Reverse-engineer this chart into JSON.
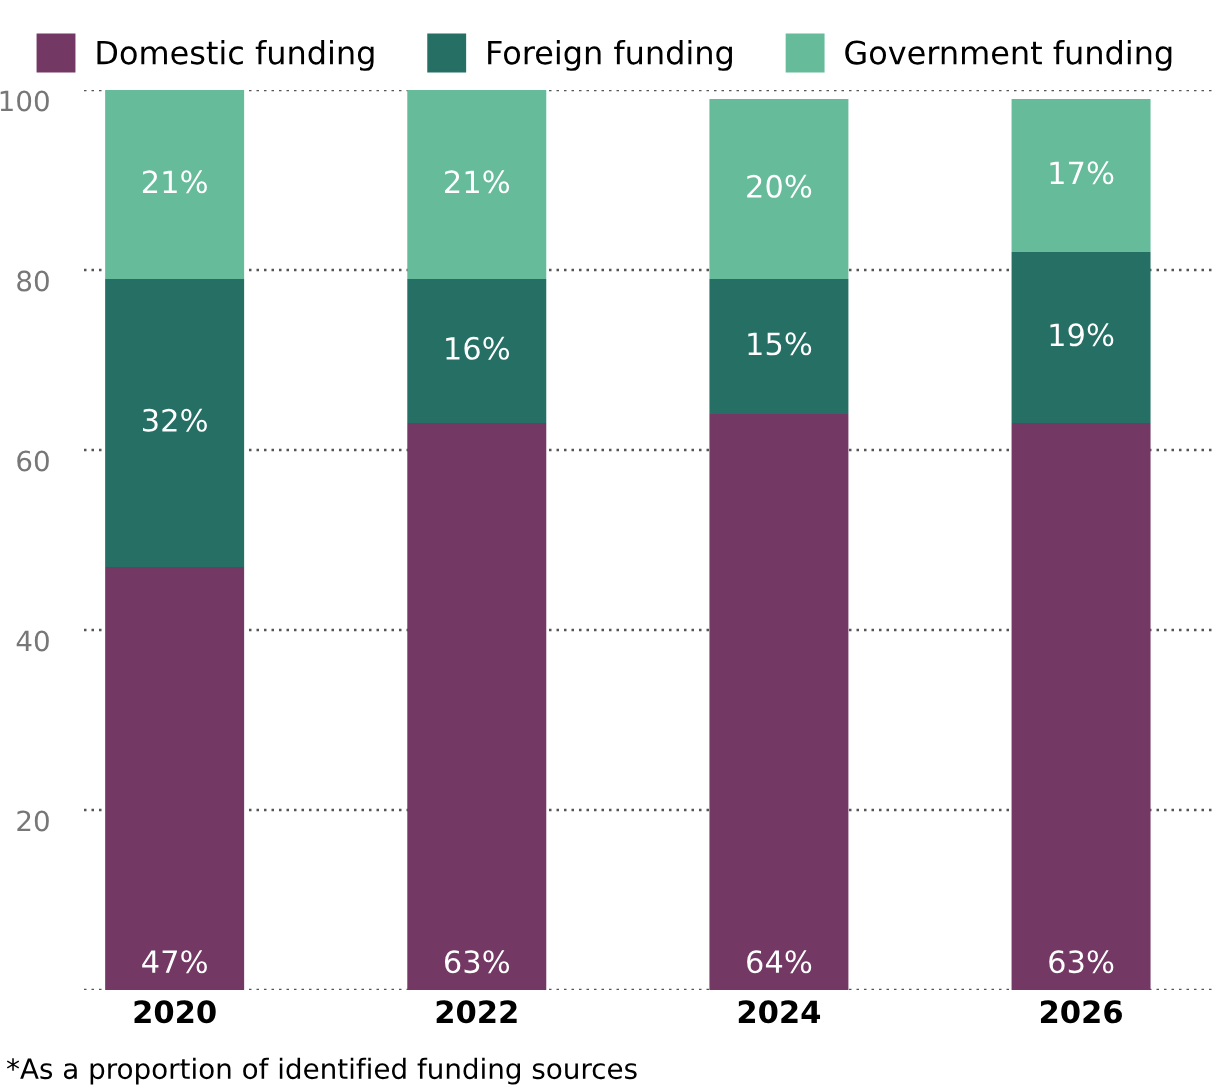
{
  "chart_data": {
    "type": "bar",
    "stacked": true,
    "categories": [
      "2020",
      "2022",
      "2024",
      "2026"
    ],
    "series": [
      {
        "name": "Domestic funding",
        "color": "#743865",
        "values": [
          47,
          63,
          64,
          63
        ],
        "value_labels": [
          "47%",
          "63%",
          "64%",
          "63%"
        ]
      },
      {
        "name": "Foreign funding",
        "color": "#256f64",
        "values": [
          32,
          16,
          15,
          19
        ],
        "value_labels": [
          "32%",
          "16%",
          "15%",
          "19%"
        ]
      },
      {
        "name": "Government funding",
        "color": "#66bb9a",
        "values": [
          21,
          21,
          20,
          17
        ],
        "value_labels": [
          "21%",
          "21%",
          "20%",
          "17%"
        ]
      }
    ],
    "ylim": [
      0,
      100
    ],
    "yticks": [
      {
        "value": 0,
        "label": null
      },
      20,
      40,
      60,
      80,
      100
    ],
    "grid": "y",
    "legend": "top left",
    "annotations": [
      "*As a proportion of identified funding sources"
    ]
  }
}
